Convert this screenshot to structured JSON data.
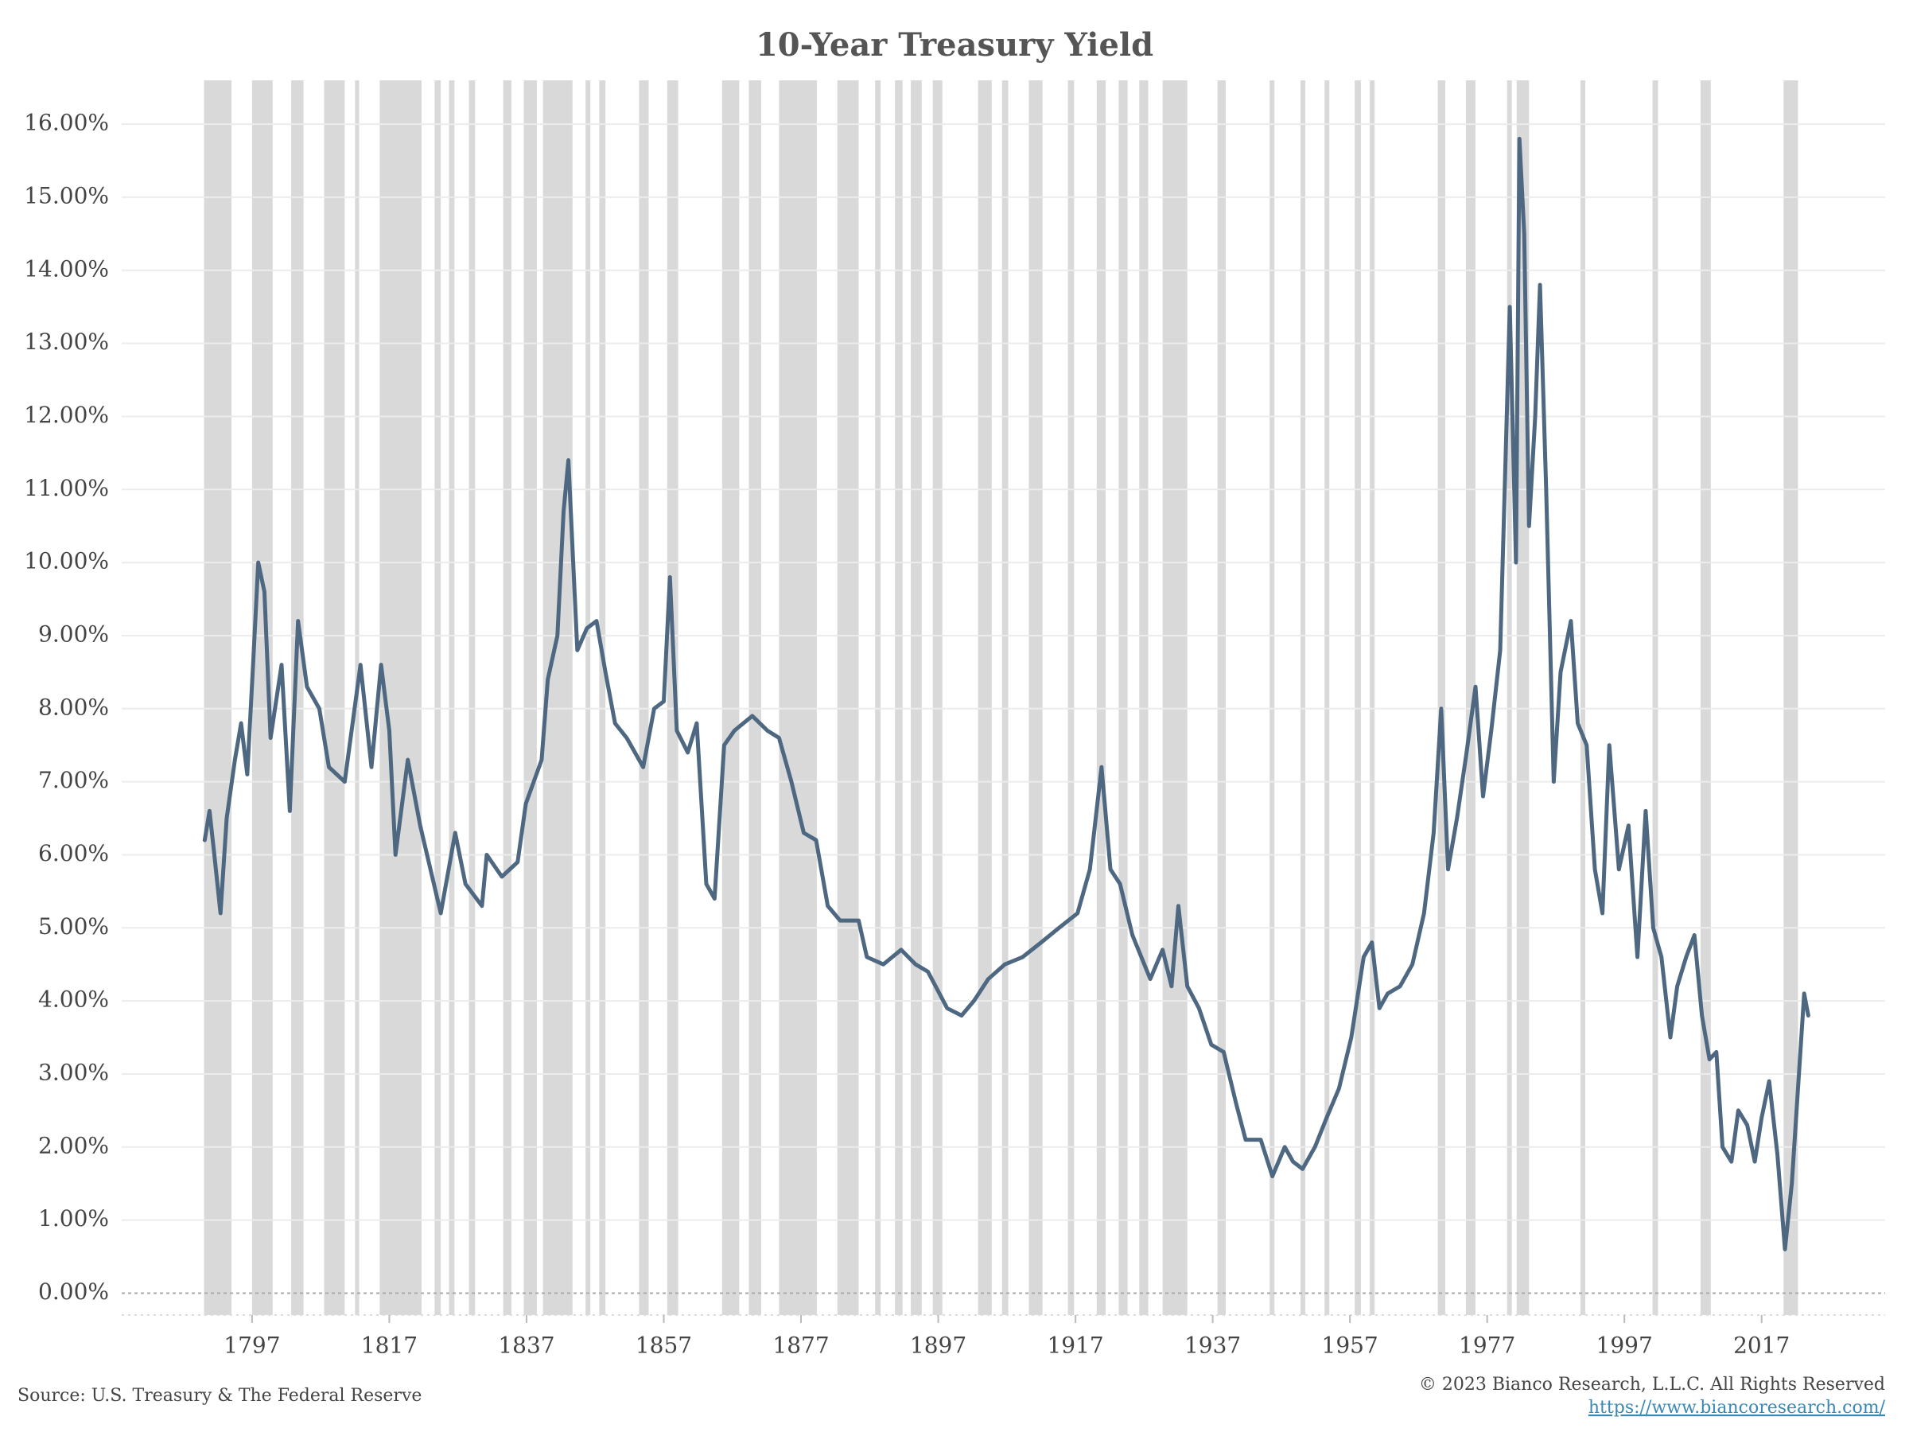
{
  "chart_data": {
    "type": "line",
    "title": "10-Year Treasury Yield",
    "x": [
      1790.1,
      1790.8,
      1791.5,
      1792.4,
      1793.3,
      1794.5,
      1795.4,
      1796.3,
      1797.2,
      1797.9,
      1798.8,
      1799.7,
      1801.3,
      1802.5,
      1803.7,
      1805.0,
      1806.8,
      1808.2,
      1810.5,
      1812.8,
      1814.4,
      1815.8,
      1817.0,
      1817.9,
      1819.7,
      1821.5,
      1824.5,
      1826.6,
      1828.1,
      1830.5,
      1831.2,
      1833.4,
      1835.7,
      1836.9,
      1839.2,
      1840.1,
      1841.5,
      1842.4,
      1843.1,
      1844.4,
      1845.8,
      1847.2,
      1848.5,
      1849.9,
      1851.6,
      1854.0,
      1855.6,
      1857.0,
      1857.9,
      1858.9,
      1860.5,
      1861.8,
      1863.2,
      1864.4,
      1865.8,
      1867.3,
      1869.9,
      1872.1,
      1873.8,
      1875.6,
      1877.4,
      1879.2,
      1880.9,
      1882.7,
      1885.4,
      1886.6,
      1889.0,
      1891.6,
      1893.7,
      1895.5,
      1898.3,
      1900.4,
      1902.2,
      1904.3,
      1906.7,
      1909.3,
      1912.0,
      1914.6,
      1917.3,
      1919.1,
      1920.8,
      1922.1,
      1923.5,
      1925.3,
      1927.9,
      1929.7,
      1931.0,
      1932.0,
      1933.3,
      1935.0,
      1936.8,
      1938.6,
      1940.4,
      1941.8,
      1944.0,
      1945.7,
      1947.5,
      1948.7,
      1950.1,
      1951.9,
      1953.6,
      1955.4,
      1957.2,
      1959.0,
      1960.2,
      1961.3,
      1962.5,
      1964.3,
      1966.1,
      1967.8,
      1969.2,
      1970.3,
      1971.3,
      1972.6,
      1974.0,
      1975.3,
      1976.4,
      1977.6,
      1978.9,
      1980.3,
      1981.2,
      1981.7,
      1982.4,
      1983.1,
      1984.0,
      1984.7,
      1985.6,
      1986.7,
      1987.7,
      1989.2,
      1990.2,
      1991.5,
      1992.7,
      1993.8,
      1994.8,
      1996.2,
      1997.6,
      1998.9,
      2000.1,
      2001.2,
      2002.4,
      2003.7,
      2004.7,
      2006.0,
      2007.2,
      2008.3,
      2009.4,
      2010.4,
      2011.3,
      2012.6,
      2013.6,
      2014.9,
      2016.0,
      2017.0,
      2018.1,
      2019.3,
      2020.4,
      2021.4,
      2022.3,
      2023.2,
      2023.8
    ],
    "values": [
      6.2,
      6.6,
      6.0,
      5.2,
      6.5,
      7.3,
      7.8,
      7.1,
      8.7,
      10.0,
      9.6,
      7.6,
      8.6,
      6.6,
      9.2,
      8.3,
      8.0,
      7.2,
      7.0,
      8.6,
      7.2,
      8.6,
      7.7,
      6.0,
      7.3,
      6.4,
      5.2,
      6.3,
      5.6,
      5.3,
      6.0,
      5.7,
      5.9,
      6.7,
      7.3,
      8.4,
      9.0,
      10.7,
      11.4,
      8.8,
      9.1,
      9.2,
      8.5,
      7.8,
      7.6,
      7.2,
      8.0,
      8.1,
      9.8,
      7.7,
      7.4,
      7.8,
      5.6,
      5.4,
      7.5,
      7.7,
      7.9,
      7.7,
      7.6,
      7.0,
      6.3,
      6.2,
      5.3,
      5.1,
      5.1,
      4.6,
      4.5,
      4.7,
      4.5,
      4.4,
      3.9,
      3.8,
      4.0,
      4.3,
      4.5,
      4.6,
      4.8,
      5.0,
      5.2,
      5.8,
      7.2,
      5.8,
      5.6,
      4.9,
      4.3,
      4.7,
      4.2,
      5.3,
      4.2,
      3.9,
      3.4,
      3.3,
      2.6,
      2.1,
      2.1,
      1.6,
      2.0,
      1.8,
      1.7,
      2.0,
      2.4,
      2.8,
      3.5,
      4.6,
      4.8,
      3.9,
      4.1,
      4.2,
      4.5,
      5.2,
      6.3,
      8.0,
      5.8,
      6.5,
      7.4,
      8.3,
      6.8,
      7.7,
      8.8,
      13.5,
      10.0,
      15.8,
      14.5,
      10.5,
      12.0,
      13.8,
      11.0,
      7.0,
      8.5,
      9.2,
      7.8,
      7.5,
      5.8,
      5.2,
      7.5,
      5.8,
      6.4,
      4.6,
      6.6,
      5.0,
      4.6,
      3.5,
      4.2,
      4.6,
      4.9,
      3.8,
      3.2,
      3.3,
      2.0,
      1.8,
      2.5,
      2.3,
      1.8,
      2.4,
      2.9,
      1.9,
      0.6,
      1.5,
      2.8,
      4.1,
      3.8
    ],
    "color": "#4e6882",
    "recession_bands": [
      [
        1790,
        1794
      ],
      [
        1797,
        1800
      ],
      [
        1802.7,
        1804.5
      ],
      [
        1807.5,
        1810.5
      ],
      [
        1812,
        1812.6
      ],
      [
        1815.6,
        1821.7
      ],
      [
        1823.6,
        1824.5
      ],
      [
        1825.7,
        1826.5
      ],
      [
        1828.6,
        1829.5
      ],
      [
        1833.6,
        1834.8
      ],
      [
        1836.6,
        1838.5
      ],
      [
        1839.4,
        1843.7
      ],
      [
        1845.6,
        1846.3
      ],
      [
        1847.6,
        1848.5
      ],
      [
        1853.4,
        1854.8
      ],
      [
        1857.5,
        1859.1
      ],
      [
        1865.5,
        1868
      ],
      [
        1869.4,
        1871.2
      ],
      [
        1873.8,
        1879.3
      ],
      [
        1882.3,
        1885.4
      ],
      [
        1887.8,
        1888.6
      ],
      [
        1890.7,
        1891.8
      ],
      [
        1893,
        1894.6
      ],
      [
        1896.2,
        1897.6
      ],
      [
        1902.8,
        1904.8
      ],
      [
        1906.3,
        1907.2
      ],
      [
        1910.2,
        1912.2
      ],
      [
        1915.9,
        1916.8
      ],
      [
        1920.1,
        1921.4
      ],
      [
        1923.3,
        1924.6
      ],
      [
        1926.3,
        1927.6
      ],
      [
        1929.7,
        1933.3
      ],
      [
        1937.7,
        1938.9
      ],
      [
        1945.3,
        1946
      ],
      [
        1949.8,
        1950.5
      ],
      [
        1953.3,
        1954
      ],
      [
        1957.7,
        1958.6
      ],
      [
        1959.9,
        1960.6
      ],
      [
        1969.8,
        1970.9
      ],
      [
        1973.9,
        1975.3
      ],
      [
        1979.9,
        1980.6
      ],
      [
        1981.3,
        1983.1
      ],
      [
        1990.6,
        1991.3
      ],
      [
        2001.1,
        2001.9
      ],
      [
        2008.1,
        2009.6
      ],
      [
        2020.2,
        2022.3
      ]
    ],
    "recession_color": "#d9d9d9",
    "xlim": [
      1778,
      2035
    ],
    "xticks": [
      1797,
      1817,
      1837,
      1857,
      1877,
      1897,
      1917,
      1937,
      1957,
      1977,
      1997,
      2017
    ],
    "ylim": [
      -0.3,
      16.6
    ],
    "yticks": [
      {
        "value": 0,
        "label": "0.00%"
      },
      {
        "value": 1,
        "label": "1.00%"
      },
      {
        "value": 2,
        "label": "2.00%"
      },
      {
        "value": 3,
        "label": "3.00%"
      },
      {
        "value": 4,
        "label": "4.00%"
      },
      {
        "value": 5,
        "label": "5.00%"
      },
      {
        "value": 6,
        "label": "6.00%"
      },
      {
        "value": 7,
        "label": "7.00%"
      },
      {
        "value": 8,
        "label": "8.00%"
      },
      {
        "value": 9,
        "label": "9.00%"
      },
      {
        "value": 10,
        "label": "10.00%"
      },
      {
        "value": 11,
        "label": "11.00%"
      },
      {
        "value": 12,
        "label": "12.00%"
      },
      {
        "value": 13,
        "label": "13.00%"
      },
      {
        "value": 14,
        "label": "14.00%"
      },
      {
        "value": 15,
        "label": "15.00%"
      },
      {
        "value": 16,
        "label": "16.00%"
      }
    ],
    "grid": true,
    "source": "Source: U.S. Treasury & The Federal Reserve",
    "copyright": "© 2023 Bianco Research, L.L.C. All Rights Reserved",
    "url": "https://www.biancoresearch.com/"
  }
}
